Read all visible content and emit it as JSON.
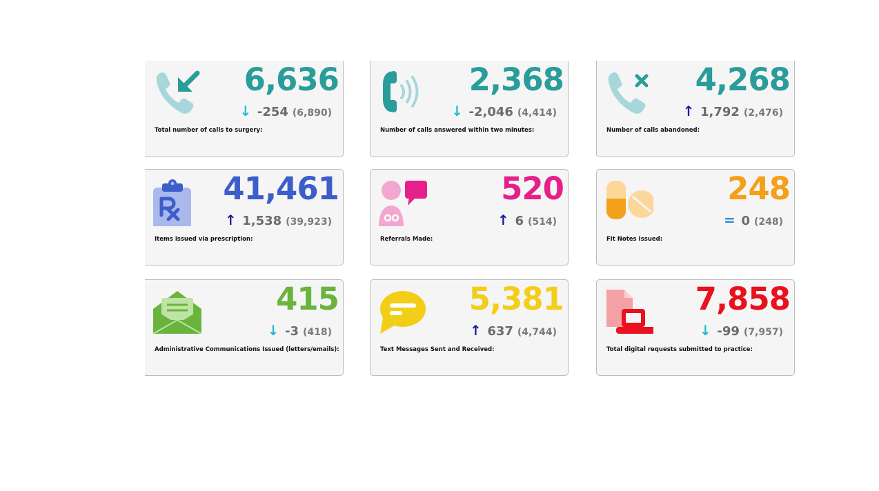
{
  "colors": {
    "teal": "#2a9d9a",
    "teal_light": "#a7d7da",
    "blue": "#3d5ec9",
    "magenta": "#e6208a",
    "orange": "#f3a11a",
    "green": "#6ab43e",
    "yellow": "#f2ce19",
    "red": "#e8111d",
    "arrow_down": "#27b7d6",
    "arrow_up": "#1a1a9c",
    "equal": "#2c8ed6"
  },
  "cards": [
    {
      "value": "6,636",
      "arrow": "↓",
      "delta": "-254",
      "prev": "(6,890)",
      "label": "Total number of calls to surgery:",
      "icon": "phone-incoming-icon"
    },
    {
      "value": "2,368",
      "arrow": "↓",
      "delta": "-2,046",
      "prev": "(4,414)",
      "label": "Number of calls answered within two minutes:",
      "icon": "phone-ringing-icon"
    },
    {
      "value": "4,268",
      "arrow": "↑",
      "delta": "1,792",
      "prev": "(2,476)",
      "label": "Number of calls abandoned:",
      "icon": "phone-missed-icon"
    },
    {
      "value": "41,461",
      "arrow": "↑",
      "delta": "1,538",
      "prev": "(39,923)",
      "label": "Items issued via prescription:",
      "icon": "prescription-clipboard-icon"
    },
    {
      "value": "520",
      "arrow": "↑",
      "delta": "6",
      "prev": "(514)",
      "label": "Referrals Made:",
      "icon": "doctor-speech-icon"
    },
    {
      "value": "248",
      "arrow": "=",
      "delta": "0",
      "prev": "(248)",
      "label": "Fit Notes Issued:",
      "icon": "pills-icon"
    },
    {
      "value": "415",
      "arrow": "↓",
      "delta": "-3",
      "prev": "(418)",
      "label": "Administrative Communications Issued (letters/emails):",
      "icon": "open-envelope-icon"
    },
    {
      "value": "5,381",
      "arrow": "↑",
      "delta": "637",
      "prev": "(4,744)",
      "label": "Text Messages Sent and Received:",
      "icon": "chat-bubble-icon"
    },
    {
      "value": "7,858",
      "arrow": "↓",
      "delta": "-99",
      "prev": "(7,957)",
      "label": "Total digital requests submitted to practice:",
      "icon": "laptop-document-icon"
    }
  ]
}
